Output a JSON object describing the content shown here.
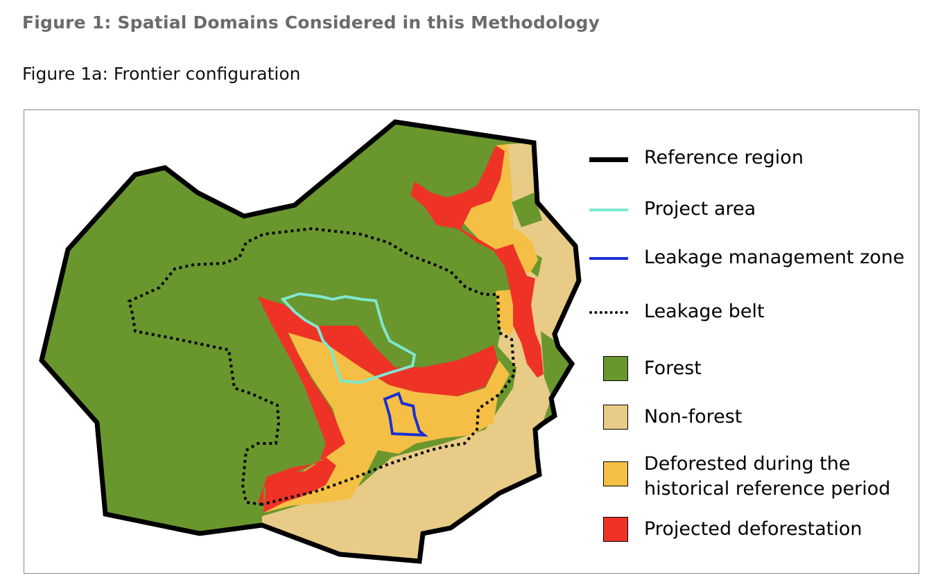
{
  "figure": {
    "title": "Figure 1: Spatial Domains Considered in this Methodology",
    "subtitle": "Figure 1a: Frontier configuration"
  },
  "legend": {
    "items": [
      {
        "label": "Reference region",
        "symbol": "line",
        "style": "solid-thick",
        "color": "#000000"
      },
      {
        "label": "Project area",
        "symbol": "line",
        "style": "solid",
        "color": "#7ee8d0"
      },
      {
        "label": "Leakage management zone",
        "symbol": "line",
        "style": "solid",
        "color": "#1a2fd6"
      },
      {
        "label": "Leakage belt",
        "symbol": "line",
        "style": "dotted",
        "color": "#000000"
      },
      {
        "label": "Forest",
        "symbol": "box",
        "color": "#6a962e"
      },
      {
        "label": "Non-forest",
        "symbol": "box",
        "color": "#e8cb86"
      },
      {
        "label": "Deforested during the",
        "label_line2": "historical reference period",
        "symbol": "box",
        "color": "#f5bf45"
      },
      {
        "label": "Projected deforestation",
        "symbol": "box",
        "color": "#ee3326"
      }
    ]
  },
  "colors": {
    "forest": "#6a962e",
    "non_forest": "#e8cb86",
    "deforested_historical": "#f5bf45",
    "projected_deforestation": "#ee3326",
    "project_area": "#7ee8d0",
    "leakage_management_zone": "#1a2fd6",
    "reference_region": "#000000",
    "title_gray": "#6b6b6b",
    "frame_border": "#8a8a8a"
  }
}
